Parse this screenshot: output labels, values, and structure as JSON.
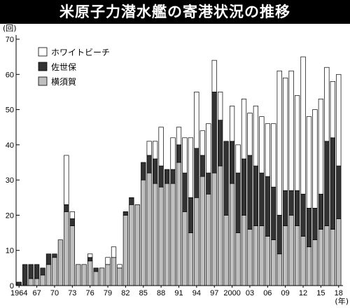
{
  "title": "米原子力潜水艦の寄港状況の推移",
  "chart_data": {
    "type": "bar",
    "stacked": true,
    "title": "米原子力潜水艦の寄港状況の推移",
    "ylabel": "(回)",
    "xlabel": "(年)",
    "ylim": [
      0,
      70
    ],
    "yticks": [
      0,
      10,
      20,
      30,
      40,
      50,
      60,
      70
    ],
    "x": [
      1964,
      1965,
      1966,
      1967,
      1968,
      1969,
      1970,
      1971,
      1972,
      1973,
      1974,
      1975,
      1976,
      1977,
      1978,
      1979,
      1980,
      1981,
      1982,
      1983,
      1984,
      1985,
      1986,
      1987,
      1988,
      1989,
      1990,
      1991,
      1992,
      1993,
      1994,
      1995,
      1996,
      1997,
      1998,
      1999,
      2000,
      2001,
      2002,
      2003,
      2004,
      2005,
      2006,
      2007,
      2008,
      2009,
      2010,
      2011,
      2012,
      2013,
      2014,
      2015,
      2016,
      2017,
      2018
    ],
    "xtick_labels": [
      {
        "year": 1964,
        "label": "1964"
      },
      {
        "year": 1967,
        "label": "67"
      },
      {
        "year": 1970,
        "label": "70"
      },
      {
        "year": 1973,
        "label": "73"
      },
      {
        "year": 1976,
        "label": "76"
      },
      {
        "year": 1979,
        "label": "79"
      },
      {
        "year": 1982,
        "label": "82"
      },
      {
        "year": 1985,
        "label": "85"
      },
      {
        "year": 1988,
        "label": "88"
      },
      {
        "year": 1991,
        "label": "91"
      },
      {
        "year": 1994,
        "label": "94"
      },
      {
        "year": 1997,
        "label": "97"
      },
      {
        "year": 2000,
        "label": "2000"
      },
      {
        "year": 2003,
        "label": "03"
      },
      {
        "year": 2006,
        "label": "06"
      },
      {
        "year": 2009,
        "label": "09"
      },
      {
        "year": 2012,
        "label": "12"
      },
      {
        "year": 2015,
        "label": "15"
      },
      {
        "year": 2018,
        "label": "18"
      }
    ],
    "series": [
      {
        "name": "横須賀",
        "color": "#bfbfbf",
        "values": [
          0,
          0,
          2,
          2,
          3,
          6,
          8,
          13,
          21,
          17,
          6,
          6,
          7,
          4,
          5,
          6,
          8,
          5,
          20,
          23,
          23,
          30,
          32,
          29,
          28,
          29,
          29,
          35,
          21,
          15,
          25,
          31,
          26,
          32,
          34,
          20,
          29,
          15,
          20,
          16,
          17,
          17,
          14,
          13,
          9,
          17,
          20,
          17,
          14,
          11,
          13,
          16,
          17,
          16,
          19
        ]
      },
      {
        "name": "佐世保",
        "color": "#333333",
        "values": [
          1,
          6,
          4,
          4,
          2,
          3,
          1,
          0,
          2,
          2,
          0,
          0,
          1,
          1,
          0,
          0,
          0,
          0,
          1,
          2,
          0,
          5,
          5,
          7,
          6,
          4,
          4,
          5,
          11,
          10,
          14,
          6,
          6,
          23,
          13,
          21,
          12,
          17,
          16,
          21,
          17,
          15,
          17,
          15,
          11,
          10,
          7,
          10,
          12,
          11,
          9,
          10,
          24,
          26,
          15
        ]
      },
      {
        "name": "ホワイトビーチ",
        "color": "#ffffff",
        "values": [
          0,
          0,
          0,
          0,
          0,
          0,
          0,
          0,
          14,
          2,
          0,
          0,
          1,
          0,
          0,
          2,
          3,
          1,
          0,
          0,
          0,
          0,
          4,
          5,
          11,
          0,
          9,
          5,
          10,
          17,
          16,
          7,
          14,
          9,
          8,
          0,
          10,
          8,
          17,
          12,
          17,
          16,
          15,
          18,
          41,
          32,
          34,
          27,
          39,
          26,
          28,
          27,
          21,
          16,
          26
        ]
      }
    ],
    "legend_position": "top-left",
    "grid": false
  },
  "legend": [
    {
      "label": "ホワイトビーチ",
      "color": "#ffffff"
    },
    {
      "label": "佐世保",
      "color": "#333333"
    },
    {
      "label": "横須賀",
      "color": "#bfbfbf"
    }
  ]
}
